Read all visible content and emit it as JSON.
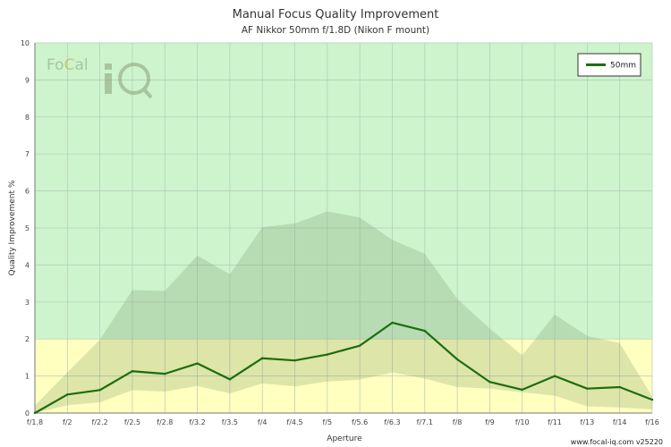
{
  "chart_data": {
    "type": "line",
    "title": "Manual Focus Quality Improvement",
    "subtitle": "AF Nikkor 50mm f/1.8D (Nikon F mount)",
    "xlabel": "Aperture",
    "ylabel": "Quality Improvement %",
    "ylim": [
      0,
      10
    ],
    "yticks": [
      0,
      1,
      2,
      3,
      4,
      5,
      6,
      7,
      8,
      9,
      10
    ],
    "categories": [
      "f/1.8",
      "f/2",
      "f/2.2",
      "f/2.5",
      "f/2.8",
      "f/3.2",
      "f/3.5",
      "f/4",
      "f/4.5",
      "f/5",
      "f/5.6",
      "f/6.3",
      "f/7.1",
      "f/8",
      "f/9",
      "f/10",
      "f/11",
      "f/13",
      "f/14",
      "f/16"
    ],
    "series": [
      {
        "name": "50mm",
        "color": "#1a6e0e",
        "values": [
          0.0,
          0.5,
          0.62,
          1.13,
          1.06,
          1.34,
          0.91,
          1.48,
          1.42,
          1.58,
          1.82,
          2.44,
          2.22,
          1.45,
          0.84,
          0.63,
          1.0,
          0.66,
          0.7,
          0.36
        ]
      }
    ],
    "outer_band": {
      "upper": [
        0.2,
        1.1,
        1.98,
        3.32,
        3.3,
        4.25,
        3.75,
        5.02,
        5.12,
        5.45,
        5.28,
        4.68,
        4.3,
        3.08,
        2.28,
        1.56,
        2.66,
        2.08,
        1.89,
        0.44
      ],
      "lower": [
        0.0,
        0.21,
        0.29,
        0.62,
        0.58,
        0.73,
        0.53,
        0.8,
        0.72,
        0.85,
        0.9,
        1.1,
        0.93,
        0.7,
        0.66,
        0.56,
        0.47,
        0.18,
        0.15,
        0.1
      ]
    },
    "zones": [
      {
        "from": 0,
        "to": 2,
        "color": "#ffffbf"
      },
      {
        "from": 2,
        "to": 10,
        "color": "#cdf4cd"
      }
    ],
    "grid": true,
    "legend": {
      "position": "top-right",
      "entries": [
        "50mm"
      ]
    }
  },
  "logo": {
    "text_a": "Fo",
    "text_b": "C",
    "text_c": "al",
    "text_d": "iQ"
  },
  "footer": {
    "credit": "www.focal-iq.com  v25220"
  }
}
